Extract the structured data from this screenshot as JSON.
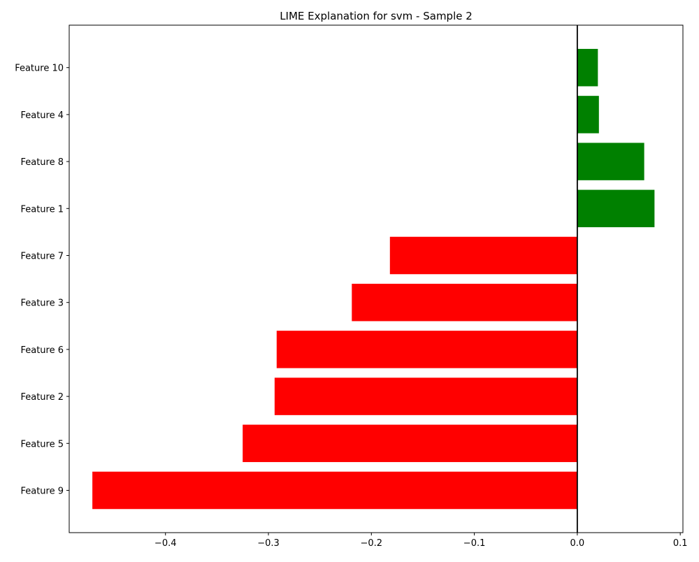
{
  "chart_data": {
    "type": "bar",
    "orientation": "horizontal",
    "title": "LIME Explanation for svm - Sample 2",
    "xlabel": "",
    "ylabel": "",
    "categories": [
      "Feature 9",
      "Feature 5",
      "Feature 2",
      "Feature 6",
      "Feature 3",
      "Feature 7",
      "Feature 1",
      "Feature 8",
      "Feature 4",
      "Feature 10"
    ],
    "values": [
      -0.471,
      -0.325,
      -0.294,
      -0.292,
      -0.219,
      -0.182,
      0.075,
      0.065,
      0.021,
      0.02
    ],
    "xlim": [
      -0.4935,
      0.1026
    ],
    "xticks": [
      -0.4,
      -0.3,
      -0.2,
      -0.1,
      0.0,
      0.1
    ],
    "xtick_labels": [
      "−0.4",
      "−0.3",
      "−0.2",
      "−0.1",
      "0.0",
      "0.1"
    ],
    "grid": false,
    "legend": false,
    "colors": {
      "positive": "#008000",
      "negative": "#ff0000",
      "zero_line": "#000000"
    }
  }
}
